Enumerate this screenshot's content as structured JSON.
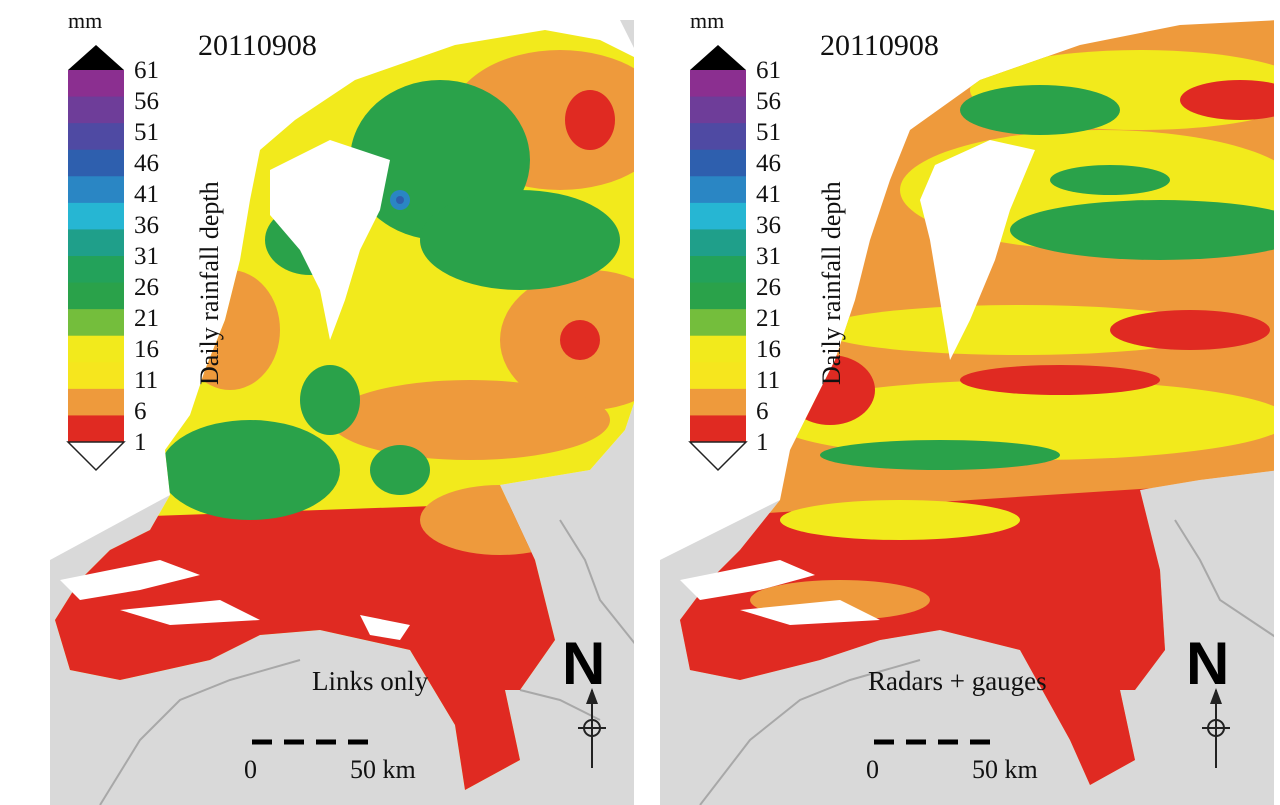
{
  "legend": {
    "unit": "mm",
    "label": "Daily rainfall depth",
    "ticks": [
      "61",
      "56",
      "51",
      "46",
      "41",
      "36",
      "31",
      "26",
      "21",
      "16",
      "11",
      "6",
      "1"
    ],
    "colors": [
      "#8b2f90",
      "#6e3d99",
      "#4f4aa3",
      "#2e5fae",
      "#2a86c4",
      "#26b6d3",
      "#1f9f8a",
      "#23a25a",
      "#2aa24a",
      "#74be3c",
      "#f2ea1c",
      "#f6e61e",
      "#ee9a3c",
      "#e02a22"
    ],
    "over_color": "#000000",
    "under_color": "#ffffff"
  },
  "panels": [
    {
      "date": "20110908",
      "method": "Links only",
      "scale_start": "0",
      "scale_end": "50 km",
      "north": "N"
    },
    {
      "date": "20110908",
      "method": "Radars + gauges",
      "scale_start": "0",
      "scale_end": "50 km",
      "north": "N"
    }
  ],
  "colors": {
    "land_outside": "#d9d9d9",
    "water": "#ffffff",
    "border": "#a8a8a8",
    "red": "#e02a22",
    "orange": "#ee9a3c",
    "yellow": "#f2ea1c",
    "green": "#2aa24a",
    "teal": "#1f9f8a",
    "blue": "#2a86c4"
  }
}
